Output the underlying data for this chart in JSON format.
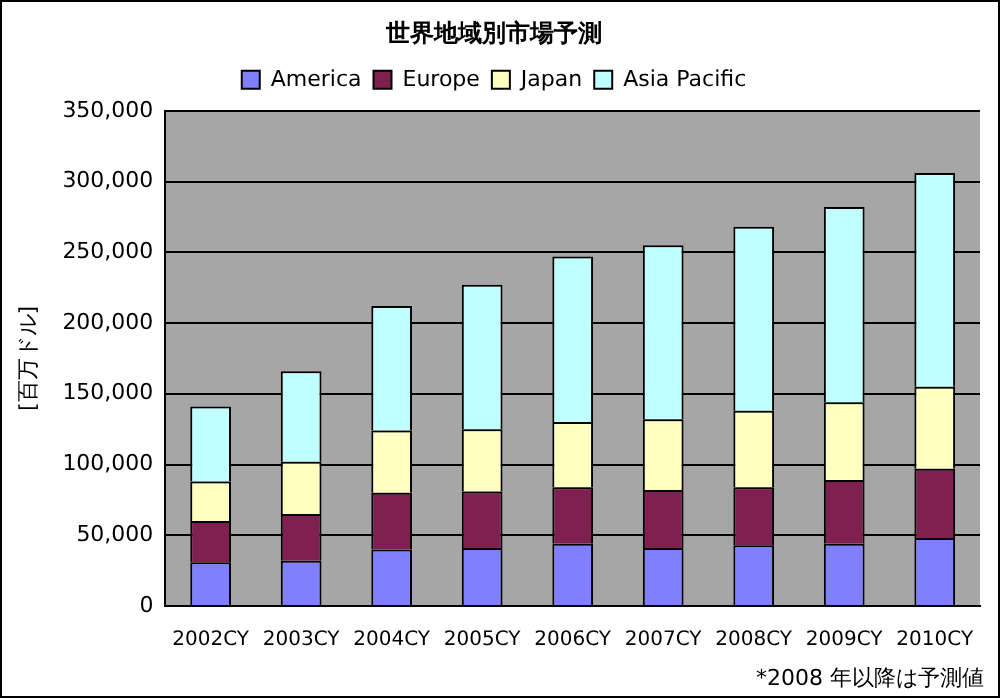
{
  "chart_data": {
    "type": "bar",
    "title": "世界地域別市場予測",
    "ylabel": "[百万ドル]",
    "annotations": [
      "*2008 年以降は予測値"
    ],
    "categories": [
      "2002CY",
      "2003CY",
      "2004CY",
      "2005CY",
      "2006CY",
      "2007CY",
      "2008CY",
      "2009CY",
      "2010CY"
    ],
    "stacked": true,
    "series": [
      {
        "name": "America",
        "color": "#8080ff",
        "values": [
          31000,
          32000,
          40000,
          41000,
          44000,
          41000,
          43000,
          44000,
          48000
        ]
      },
      {
        "name": "Europe",
        "color": "#802050",
        "values": [
          29000,
          33000,
          40000,
          40000,
          40000,
          41000,
          41000,
          45000,
          49000
        ]
      },
      {
        "name": "Japan",
        "color": "#ffffc0",
        "values": [
          28000,
          37000,
          44000,
          44000,
          46000,
          50000,
          54000,
          55000,
          58000
        ]
      },
      {
        "name": "Asia Pacific",
        "color": "#c0ffff",
        "values": [
          53000,
          64000,
          88000,
          102000,
          117000,
          123000,
          130000,
          138000,
          151000
        ]
      }
    ],
    "ylim": [
      0,
      350000
    ],
    "yticks": [
      0,
      {
        "value": 50000,
        "label": "50,000"
      },
      {
        "value": 100000,
        "label": "100,000"
      },
      {
        "value": 150000,
        "label": "150,000"
      },
      {
        "value": 200000,
        "label": "200,000"
      },
      {
        "value": 250000,
        "label": "250,000"
      },
      {
        "value": 300000,
        "label": "300,000"
      },
      {
        "value": 350000,
        "label": "350,000"
      }
    ],
    "grid": "y",
    "legend": "top"
  }
}
